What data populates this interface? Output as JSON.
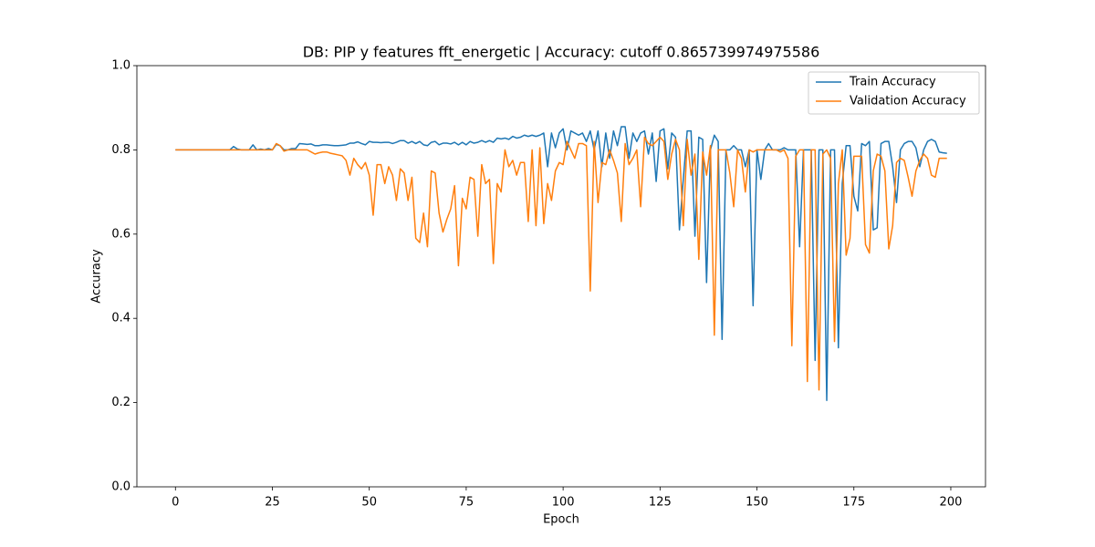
{
  "chart_data": {
    "type": "line",
    "title": "DB: PIP y features fft_energetic | Accuracy: cutoff 0.865739974975586",
    "x_label": "Epoch",
    "y_label": "Accuracy",
    "x": [
      0,
      1,
      2,
      3,
      4,
      5,
      6,
      7,
      8,
      9,
      10,
      11,
      12,
      13,
      14,
      15,
      16,
      17,
      18,
      19,
      20,
      21,
      22,
      23,
      24,
      25,
      26,
      27,
      28,
      29,
      30,
      31,
      32,
      33,
      34,
      35,
      36,
      37,
      38,
      39,
      40,
      41,
      42,
      43,
      44,
      45,
      46,
      47,
      48,
      49,
      50,
      51,
      52,
      53,
      54,
      55,
      56,
      57,
      58,
      59,
      60,
      61,
      62,
      63,
      64,
      65,
      66,
      67,
      68,
      69,
      70,
      71,
      72,
      73,
      74,
      75,
      76,
      77,
      78,
      79,
      80,
      81,
      82,
      83,
      84,
      85,
      86,
      87,
      88,
      89,
      90,
      91,
      92,
      93,
      94,
      95,
      96,
      97,
      98,
      99,
      100,
      101,
      102,
      103,
      104,
      105,
      106,
      107,
      108,
      109,
      110,
      111,
      112,
      113,
      114,
      115,
      116,
      117,
      118,
      119,
      120,
      121,
      122,
      123,
      124,
      125,
      126,
      127,
      128,
      129,
      130,
      131,
      132,
      133,
      134,
      135,
      136,
      137,
      138,
      139,
      140,
      141,
      142,
      143,
      144,
      145,
      146,
      147,
      148,
      149,
      150,
      151,
      152,
      153,
      154,
      155,
      156,
      157,
      158,
      159,
      160,
      161,
      162,
      163,
      164,
      165,
      166,
      167,
      168,
      169,
      170,
      171,
      172,
      173,
      174,
      175,
      176,
      177,
      178,
      179,
      180,
      181,
      182,
      183,
      184,
      185,
      186,
      187,
      188,
      189,
      190,
      191,
      192,
      193,
      194,
      195,
      196,
      197,
      198,
      199
    ],
    "series": [
      {
        "name": "Train Accuracy",
        "color": "#1f77b4",
        "values": [
          0.8,
          0.8,
          0.8,
          0.8,
          0.8,
          0.8,
          0.8,
          0.8,
          0.8,
          0.8,
          0.8,
          0.8,
          0.8,
          0.8,
          0.8,
          0.808,
          0.802,
          0.8,
          0.8,
          0.8,
          0.812,
          0.8,
          0.802,
          0.8,
          0.803,
          0.8,
          0.813,
          0.81,
          0.8,
          0.8,
          0.803,
          0.803,
          0.815,
          0.814,
          0.813,
          0.814,
          0.81,
          0.81,
          0.812,
          0.812,
          0.811,
          0.81,
          0.81,
          0.811,
          0.812,
          0.816,
          0.816,
          0.819,
          0.815,
          0.812,
          0.82,
          0.818,
          0.818,
          0.817,
          0.818,
          0.818,
          0.815,
          0.818,
          0.822,
          0.822,
          0.816,
          0.82,
          0.815,
          0.82,
          0.812,
          0.81,
          0.818,
          0.82,
          0.812,
          0.816,
          0.816,
          0.814,
          0.818,
          0.812,
          0.818,
          0.812,
          0.82,
          0.816,
          0.818,
          0.822,
          0.818,
          0.822,
          0.818,
          0.828,
          0.826,
          0.828,
          0.825,
          0.832,
          0.828,
          0.83,
          0.835,
          0.832,
          0.835,
          0.832,
          0.835,
          0.84,
          0.76,
          0.84,
          0.805,
          0.84,
          0.85,
          0.8,
          0.845,
          0.84,
          0.835,
          0.84,
          0.82,
          0.845,
          0.8,
          0.845,
          0.76,
          0.84,
          0.78,
          0.845,
          0.81,
          0.855,
          0.855,
          0.78,
          0.84,
          0.82,
          0.84,
          0.845,
          0.79,
          0.84,
          0.725,
          0.845,
          0.85,
          0.755,
          0.84,
          0.83,
          0.61,
          0.73,
          0.845,
          0.845,
          0.595,
          0.83,
          0.825,
          0.485,
          0.8,
          0.835,
          0.82,
          0.35,
          0.8,
          0.8,
          0.81,
          0.8,
          0.8,
          0.76,
          0.8,
          0.43,
          0.8,
          0.73,
          0.8,
          0.815,
          0.8,
          0.8,
          0.8,
          0.805,
          0.8,
          0.8,
          0.8,
          0.57,
          0.8,
          0.8,
          0.8,
          0.3,
          0.8,
          0.8,
          0.205,
          0.8,
          0.8,
          0.33,
          0.72,
          0.81,
          0.81,
          0.69,
          0.655,
          0.815,
          0.81,
          0.82,
          0.61,
          0.615,
          0.815,
          0.82,
          0.82,
          0.76,
          0.675,
          0.8,
          0.815,
          0.82,
          0.82,
          0.805,
          0.76,
          0.8,
          0.82,
          0.825,
          0.82,
          0.795,
          0.793,
          0.792
        ]
      },
      {
        "name": "Validation Accuracy",
        "color": "#ff7f0e",
        "values": [
          0.8,
          0.8,
          0.8,
          0.8,
          0.8,
          0.8,
          0.8,
          0.8,
          0.8,
          0.8,
          0.8,
          0.8,
          0.8,
          0.8,
          0.8,
          0.8,
          0.8,
          0.8,
          0.8,
          0.8,
          0.8,
          0.8,
          0.8,
          0.8,
          0.8,
          0.8,
          0.815,
          0.81,
          0.797,
          0.8,
          0.8,
          0.8,
          0.8,
          0.8,
          0.8,
          0.795,
          0.79,
          0.793,
          0.795,
          0.795,
          0.792,
          0.79,
          0.788,
          0.786,
          0.775,
          0.74,
          0.78,
          0.765,
          0.755,
          0.77,
          0.74,
          0.645,
          0.765,
          0.765,
          0.72,
          0.76,
          0.74,
          0.68,
          0.755,
          0.745,
          0.68,
          0.735,
          0.59,
          0.58,
          0.65,
          0.57,
          0.75,
          0.745,
          0.65,
          0.605,
          0.635,
          0.66,
          0.715,
          0.525,
          0.685,
          0.66,
          0.735,
          0.73,
          0.595,
          0.765,
          0.72,
          0.73,
          0.53,
          0.72,
          0.7,
          0.8,
          0.76,
          0.775,
          0.74,
          0.77,
          0.77,
          0.63,
          0.8,
          0.62,
          0.805,
          0.625,
          0.72,
          0.68,
          0.75,
          0.77,
          0.765,
          0.82,
          0.8,
          0.78,
          0.815,
          0.815,
          0.81,
          0.465,
          0.82,
          0.675,
          0.77,
          0.765,
          0.8,
          0.775,
          0.745,
          0.63,
          0.815,
          0.765,
          0.78,
          0.8,
          0.665,
          0.83,
          0.815,
          0.81,
          0.82,
          0.83,
          0.82,
          0.73,
          0.79,
          0.825,
          0.8,
          0.62,
          0.825,
          0.74,
          0.79,
          0.54,
          0.795,
          0.74,
          0.81,
          0.36,
          0.8,
          0.8,
          0.8,
          0.745,
          0.665,
          0.8,
          0.78,
          0.7,
          0.8,
          0.795,
          0.8,
          0.8,
          0.8,
          0.8,
          0.8,
          0.8,
          0.795,
          0.8,
          0.78,
          0.335,
          0.785,
          0.8,
          0.8,
          0.25,
          0.8,
          0.8,
          0.23,
          0.79,
          0.8,
          0.78,
          0.345,
          0.72,
          0.8,
          0.55,
          0.59,
          0.785,
          0.785,
          0.785,
          0.575,
          0.555,
          0.75,
          0.79,
          0.785,
          0.75,
          0.565,
          0.62,
          0.77,
          0.78,
          0.775,
          0.735,
          0.69,
          0.75,
          0.775,
          0.79,
          0.78,
          0.74,
          0.735,
          0.78,
          0.78,
          0.78
        ]
      }
    ],
    "xlim": [
      -9.95,
      208.95
    ],
    "xticks": [
      0,
      25,
      50,
      75,
      100,
      125,
      150,
      175,
      200
    ],
    "ylim": [
      0,
      1
    ],
    "yticks": [
      {
        "value": 0,
        "label": "0.0"
      },
      0.2,
      0.4,
      0.6,
      0.8,
      {
        "value": 1,
        "label": "1.0"
      }
    ],
    "legend": "upper right"
  }
}
